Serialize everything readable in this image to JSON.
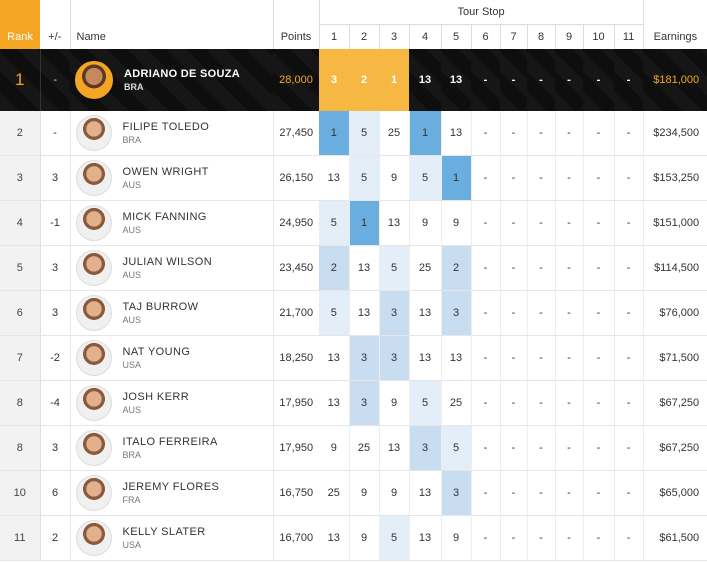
{
  "header": {
    "rank": "Rank",
    "change": "+/-",
    "name": "Name",
    "points": "Points",
    "tour_stop": "Tour Stop",
    "stops": [
      "1",
      "2",
      "3",
      "4",
      "5",
      "6",
      "7",
      "8",
      "9",
      "10",
      "11"
    ],
    "earnings": "Earnings"
  },
  "leader": {
    "rank": "1",
    "change": "-",
    "name": "ADRIANO DE SOUZA",
    "country": "BRA",
    "points": "28,000",
    "scores": [
      "3",
      "2",
      "1",
      "13",
      "13",
      "-",
      "-",
      "-",
      "-",
      "-",
      "-"
    ],
    "earnings": "$181,000"
  },
  "rows": [
    {
      "rank": "2",
      "change": "-",
      "name": "FILIPE TOLEDO",
      "country": "BRA",
      "points": "27,450",
      "scores": [
        "1",
        "5",
        "25",
        "1",
        "13",
        "-",
        "-",
        "-",
        "-",
        "-",
        "-"
      ],
      "earnings": "$234,500"
    },
    {
      "rank": "3",
      "change": "3",
      "name": "OWEN WRIGHT",
      "country": "AUS",
      "points": "26,150",
      "scores": [
        "13",
        "5",
        "9",
        "5",
        "1",
        "-",
        "-",
        "-",
        "-",
        "-",
        "-"
      ],
      "earnings": "$153,250"
    },
    {
      "rank": "4",
      "change": "-1",
      "name": "MICK FANNING",
      "country": "AUS",
      "points": "24,950",
      "scores": [
        "5",
        "1",
        "13",
        "9",
        "9",
        "-",
        "-",
        "-",
        "-",
        "-",
        "-"
      ],
      "earnings": "$151,000"
    },
    {
      "rank": "5",
      "change": "3",
      "name": "JULIAN WILSON",
      "country": "AUS",
      "points": "23,450",
      "scores": [
        "2",
        "13",
        "5",
        "25",
        "2",
        "-",
        "-",
        "-",
        "-",
        "-",
        "-"
      ],
      "earnings": "$114,500"
    },
    {
      "rank": "6",
      "change": "3",
      "name": "TAJ BURROW",
      "country": "AUS",
      "points": "21,700",
      "scores": [
        "5",
        "13",
        "3",
        "13",
        "3",
        "-",
        "-",
        "-",
        "-",
        "-",
        "-"
      ],
      "earnings": "$76,000"
    },
    {
      "rank": "7",
      "change": "-2",
      "name": "NAT YOUNG",
      "country": "USA",
      "points": "18,250",
      "scores": [
        "13",
        "3",
        "3",
        "13",
        "13",
        "-",
        "-",
        "-",
        "-",
        "-",
        "-"
      ],
      "earnings": "$71,500"
    },
    {
      "rank": "8",
      "change": "-4",
      "name": "JOSH KERR",
      "country": "AUS",
      "points": "17,950",
      "scores": [
        "13",
        "3",
        "9",
        "5",
        "25",
        "-",
        "-",
        "-",
        "-",
        "-",
        "-"
      ],
      "earnings": "$67,250"
    },
    {
      "rank": "8",
      "change": "3",
      "name": "ITALO FERREIRA",
      "country": "BRA",
      "points": "17,950",
      "scores": [
        "9",
        "25",
        "13",
        "3",
        "5",
        "-",
        "-",
        "-",
        "-",
        "-",
        "-"
      ],
      "earnings": "$67,250"
    },
    {
      "rank": "10",
      "change": "6",
      "name": "JEREMY FLORES",
      "country": "FRA",
      "points": "16,750",
      "scores": [
        "25",
        "9",
        "9",
        "13",
        "3",
        "-",
        "-",
        "-",
        "-",
        "-",
        "-"
      ],
      "earnings": "$65,000"
    },
    {
      "rank": "11",
      "change": "2",
      "name": "KELLY SLATER",
      "country": "USA",
      "points": "16,700",
      "scores": [
        "13",
        "9",
        "5",
        "13",
        "9",
        "-",
        "-",
        "-",
        "-",
        "-",
        "-"
      ],
      "earnings": "$61,500"
    }
  ],
  "colors": {
    "accent": "#f5a524",
    "highlight_light": "#e4eef9",
    "highlight_mid": "#c9ddf1",
    "highlight_strong": "#6aaee0",
    "up": "#3aa63a",
    "down": "#d94040"
  }
}
